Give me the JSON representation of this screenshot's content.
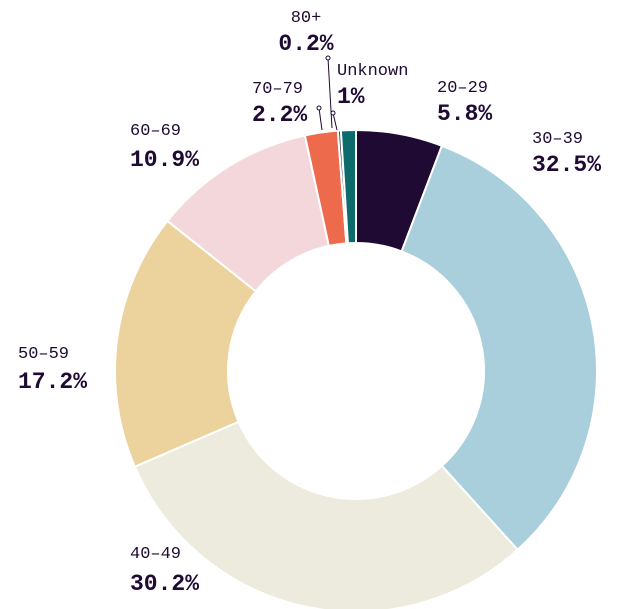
{
  "chart_data": {
    "type": "donut",
    "categories": [
      "20–29",
      "30–39",
      "40–49",
      "50–59",
      "60–69",
      "70–79",
      "80+",
      "Unknown"
    ],
    "values": [
      5.8,
      32.5,
      30.2,
      17.2,
      10.9,
      2.2,
      0.2,
      1
    ],
    "value_labels": [
      "5.8%",
      "32.5%",
      "30.2%",
      "17.2%",
      "10.9%",
      "2.2%",
      "0.2%",
      "1%"
    ],
    "colors": [
      "#1e0a33",
      "#a9cfdc",
      "#ecebdd",
      "#ecd39d",
      "#f3d7da",
      "#ee6a4c",
      "#2e4756",
      "#0e6b6b"
    ]
  }
}
